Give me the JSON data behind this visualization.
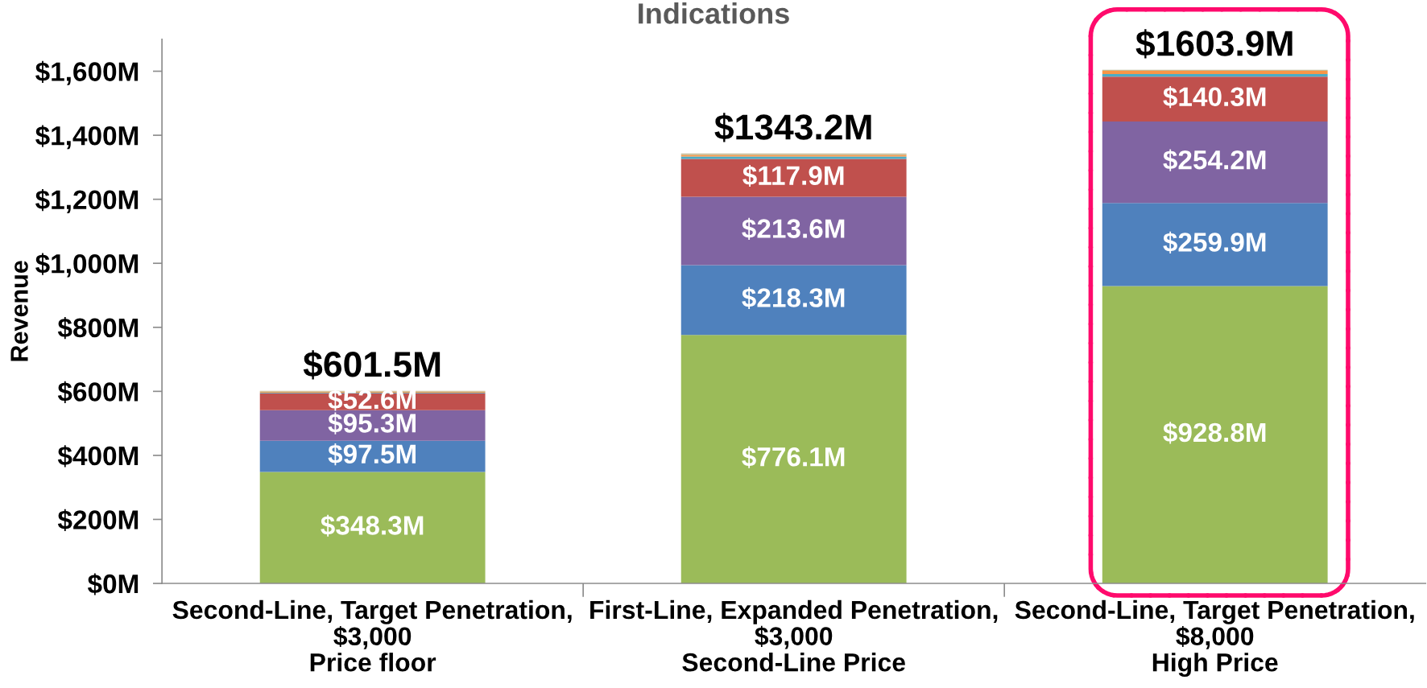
{
  "chart_data": {
    "type": "bar",
    "stacked": true,
    "title": "Indications",
    "ylabel": "Revenue",
    "categories": [
      "Second-Line, Target Penetration,\n$3,000\nPrice floor",
      "First-Line, Expanded Penetration,\n$3,000\nSecond-Line Price",
      "Second-Line, Target Penetration,\n$8,000\nHigh Price"
    ],
    "series": [
      {
        "color": "#9bbb59",
        "values": [
          348.3,
          776.1,
          928.8
        ],
        "value_labels": [
          "$348.3M",
          "$776.1M",
          "$928.8M"
        ]
      },
      {
        "color": "#4f81bd",
        "values": [
          97.5,
          218.3,
          259.9
        ],
        "value_labels": [
          "$97.5M",
          "$218.3M",
          "$259.9M"
        ]
      },
      {
        "color": "#8064a2",
        "values": [
          95.3,
          213.6,
          254.2
        ],
        "value_labels": [
          "$95.3M",
          "$213.6M",
          "$254.2M"
        ]
      },
      {
        "color": "#c0504d",
        "values": [
          52.6,
          117.9,
          140.3
        ],
        "value_labels": [
          "$52.6M",
          "$117.9M",
          "$140.3M"
        ]
      },
      {
        "color": "#4bacc6",
        "values": [
          2,
          8,
          8
        ]
      },
      {
        "color": "#f79646",
        "values": [
          3,
          5,
          10
        ]
      },
      {
        "color": "#c4bd97",
        "values": [
          3,
          4,
          3
        ]
      }
    ],
    "totals": [
      "$601.5M",
      "$1343.2M",
      "$1603.9M"
    ],
    "ylim": [
      0,
      1700
    ],
    "yticks": [
      {
        "value": 0,
        "label": "$0M"
      },
      {
        "value": 200,
        "label": "$200M"
      },
      {
        "value": 400,
        "label": "$400M"
      },
      {
        "value": 600,
        "label": "$600M"
      },
      {
        "value": 800,
        "label": "$800M"
      },
      {
        "value": 1000,
        "label": "$1,000M"
      },
      {
        "value": 1200,
        "label": "$1,200M"
      },
      {
        "value": 1400,
        "label": "$1,400M"
      },
      {
        "value": 1600,
        "label": "$1,600M"
      }
    ]
  }
}
